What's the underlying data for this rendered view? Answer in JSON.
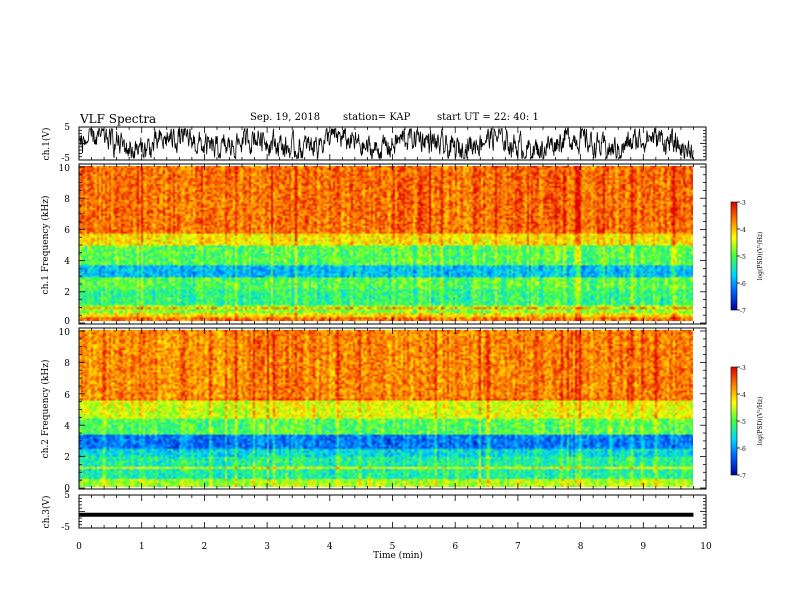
{
  "header": {
    "title": "VLF Spectra",
    "date": "Sep. 19, 2018",
    "station": "station= KAP",
    "start_time": "start  UT =   22: 40: 1"
  },
  "chart_data": [
    {
      "type": "line",
      "panel": "ch1-waveform",
      "ylabel": "ch.1(V)",
      "ylim": [
        -5,
        5
      ],
      "yticks": [
        "5",
        "-5"
      ],
      "xlim": [
        0,
        10
      ],
      "series": [
        {
          "values": "noisy waveform, roughly between -4 and 4 V"
        }
      ]
    },
    {
      "type": "heatmap",
      "panel": "ch1-spectrogram",
      "ylabel": "ch.1\nFrequency  (kHz)",
      "ylim": [
        0,
        10
      ],
      "yticks": [
        "0",
        "2",
        "4",
        "6",
        "8",
        "10"
      ],
      "xlim": [
        0,
        9.8
      ],
      "colorbar": {
        "label": "log(PSD)(V²/Hz)",
        "range": [
          -7,
          -3
        ],
        "ticks": [
          "-3",
          "-4",
          "-5",
          "-6",
          "-7"
        ]
      },
      "bands_khz_log_psd": [
        {
          "from": 0.0,
          "to": 0.2,
          "level": -3.6
        },
        {
          "from": 0.2,
          "to": 0.5,
          "level": -4.2
        },
        {
          "from": 0.5,
          "to": 1.0,
          "level": -4.8
        },
        {
          "from": 1.0,
          "to": 2.0,
          "level": -5.2
        },
        {
          "from": 2.0,
          "to": 2.8,
          "level": -5.0
        },
        {
          "from": 2.8,
          "to": 3.6,
          "level": -5.8
        },
        {
          "from": 3.6,
          "to": 4.9,
          "level": -5.0
        },
        {
          "from": 4.9,
          "to": 5.6,
          "level": -4.2
        },
        {
          "from": 5.6,
          "to": 10.0,
          "level": -3.6
        }
      ]
    },
    {
      "type": "heatmap",
      "panel": "ch2-spectrogram",
      "ylabel": "ch.2\nFrequency  (kHz)",
      "ylim": [
        0,
        10
      ],
      "yticks": [
        "0",
        "2",
        "4",
        "6",
        "8",
        "10"
      ],
      "xlim": [
        0,
        9.8
      ],
      "colorbar": {
        "label": "log(PSD)(V²/Hz)",
        "range": [
          -7,
          -3
        ],
        "ticks": [
          "-3",
          "-4",
          "-5",
          "-6",
          "-7"
        ]
      },
      "bands_khz_log_psd": [
        {
          "from": 0.0,
          "to": 0.5,
          "level": -4.6
        },
        {
          "from": 0.5,
          "to": 1.9,
          "level": -5.3
        },
        {
          "from": 1.9,
          "to": 2.4,
          "level": -5.6
        },
        {
          "from": 2.4,
          "to": 3.3,
          "level": -6.2
        },
        {
          "from": 3.3,
          "to": 4.4,
          "level": -5.0
        },
        {
          "from": 4.4,
          "to": 5.6,
          "level": -4.4
        },
        {
          "from": 5.6,
          "to": 10.0,
          "level": -3.7
        }
      ]
    },
    {
      "type": "line",
      "panel": "ch3-waveform",
      "ylabel": "ch.3(V)",
      "ylim": [
        -5,
        5
      ],
      "yticks": [
        "5",
        "-5"
      ],
      "xlim": [
        0,
        10
      ],
      "series": [
        {
          "values": "flat near -1 V"
        }
      ]
    }
  ],
  "xaxis": {
    "label": "Time  (min)",
    "ticks": [
      "0",
      "1",
      "2",
      "3",
      "4",
      "5",
      "6",
      "7",
      "8",
      "9",
      "10"
    ]
  },
  "colors": {
    "colormap": [
      "#0000a0",
      "#0060ff",
      "#00d8ff",
      "#40ff40",
      "#ffff00",
      "#ff8000",
      "#e00000"
    ]
  }
}
